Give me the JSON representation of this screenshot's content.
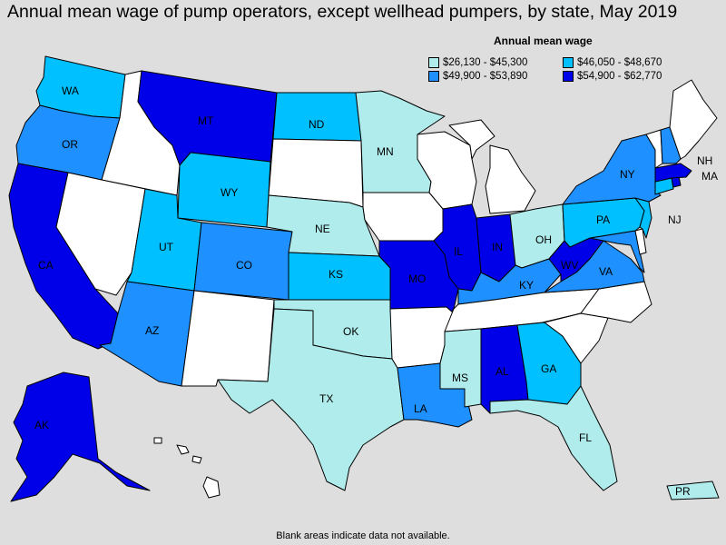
{
  "title": "Annual mean wage of pump operators, except wellhead pumpers, by state, May 2019",
  "legend": {
    "title": "Annual mean wage",
    "items": [
      {
        "label": "$26,130 - $45,300",
        "color": "#b0ecec"
      },
      {
        "label": "$46,050 - $48,670",
        "color": "#00c0ff"
      },
      {
        "label": "$49,900 - $53,890",
        "color": "#1e90ff"
      },
      {
        "label": "$54,900 - $62,770",
        "color": "#0000e8"
      }
    ],
    "no_data_color": "#ffffff"
  },
  "footnote": "Blank areas indicate data not available.",
  "states": {
    "WA": {
      "label": "WA",
      "tier": 1
    },
    "OR": {
      "label": "OR",
      "tier": 2
    },
    "CA": {
      "label": "CA",
      "tier": 3
    },
    "MT": {
      "label": "MT",
      "tier": 3
    },
    "ND": {
      "label": "ND",
      "tier": 1
    },
    "MN": {
      "label": "MN",
      "tier": 0
    },
    "WY": {
      "label": "WY",
      "tier": 1
    },
    "NE": {
      "label": "NE",
      "tier": 0
    },
    "UT": {
      "label": "UT",
      "tier": 1
    },
    "CO": {
      "label": "CO",
      "tier": 2
    },
    "KS": {
      "label": "KS",
      "tier": 1
    },
    "AZ": {
      "label": "AZ",
      "tier": 2
    },
    "OK": {
      "label": "OK",
      "tier": 0
    },
    "TX": {
      "label": "TX",
      "tier": 0
    },
    "MO": {
      "label": "MO",
      "tier": 3
    },
    "IL": {
      "label": "IL",
      "tier": 3
    },
    "IN": {
      "label": "IN",
      "tier": 3
    },
    "OH": {
      "label": "OH",
      "tier": 0
    },
    "KY": {
      "label": "KY",
      "tier": 2
    },
    "WV": {
      "label": "WV",
      "tier": 3
    },
    "VA": {
      "label": "VA",
      "tier": 2
    },
    "LA": {
      "label": "LA",
      "tier": 2
    },
    "MS": {
      "label": "MS",
      "tier": 0
    },
    "AL": {
      "label": "AL",
      "tier": 3
    },
    "GA": {
      "label": "GA",
      "tier": 1
    },
    "FL": {
      "label": "FL",
      "tier": 0
    },
    "PA": {
      "label": "PA",
      "tier": 1
    },
    "NY": {
      "label": "NY",
      "tier": 2
    },
    "NJ": {
      "label": "NJ",
      "tier": 1
    },
    "NH": {
      "label": "NH",
      "tier": 2
    },
    "MA": {
      "label": "MA",
      "tier": 3
    },
    "RI": {
      "label": "",
      "tier": 3
    },
    "CT": {
      "label": "",
      "tier": 1
    },
    "MD": {
      "label": "",
      "tier": 2
    },
    "AK": {
      "label": "AK",
      "tier": 3
    },
    "PR": {
      "label": "PR",
      "tier": 0
    },
    "ID": {
      "label": "",
      "tier": null
    },
    "NV": {
      "label": "",
      "tier": null
    },
    "NM": {
      "label": "",
      "tier": null
    },
    "SD": {
      "label": "",
      "tier": null
    },
    "IA": {
      "label": "",
      "tier": null
    },
    "AR": {
      "label": "",
      "tier": null
    },
    "WI": {
      "label": "",
      "tier": null
    },
    "MI": {
      "label": "",
      "tier": null
    },
    "TN": {
      "label": "",
      "tier": null
    },
    "NC": {
      "label": "",
      "tier": null
    },
    "SC": {
      "label": "",
      "tier": null
    },
    "ME": {
      "label": "",
      "tier": null
    },
    "VT": {
      "label": "",
      "tier": null
    },
    "DE": {
      "label": "",
      "tier": null
    },
    "HI": {
      "label": "",
      "tier": null
    }
  }
}
